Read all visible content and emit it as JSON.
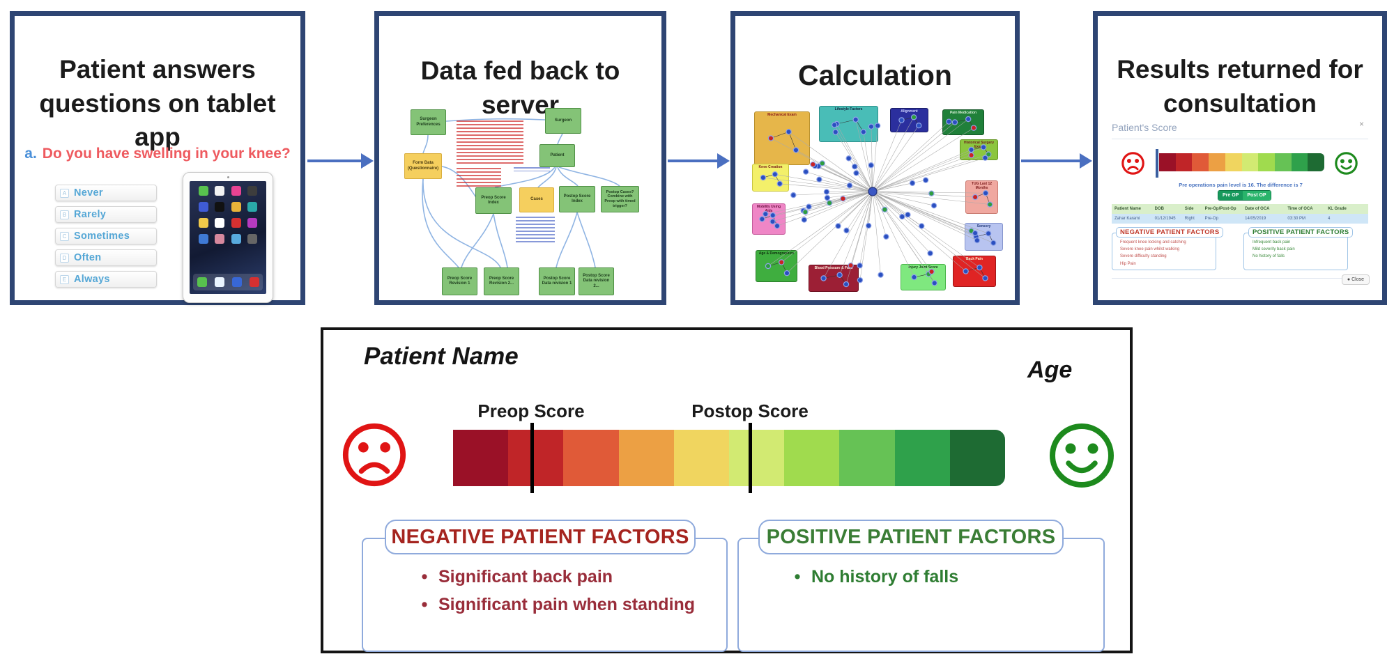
{
  "step1": {
    "title": "Patient answers questions on tablet app",
    "question_prefix": "a.",
    "question": "Do you have swelling in your knee?",
    "answers": [
      {
        "key": "A",
        "label": "Never"
      },
      {
        "key": "B",
        "label": "Rarely"
      },
      {
        "key": "C",
        "label": "Sometimes"
      },
      {
        "key": "D",
        "label": "Often"
      },
      {
        "key": "E",
        "label": "Always"
      }
    ]
  },
  "step2": {
    "title": "Data fed back to server",
    "boxes": {
      "surgeon_preferences": "Surgeon Preferences",
      "surgeon": "Surgeon",
      "patient": "Patient",
      "form_data": "Form Data (Questionnaire)",
      "preop_index": "Preop Score Index",
      "cases": "Cases",
      "postop_index": "Postop Score Index",
      "postop_cases": "Postop Cases? Combine with Preop with timed trigger?",
      "preop_rev1": "Preop Score Revision 1",
      "preop_rev2": "Preop Score Revision 2...",
      "postop_rev1": "Postop Score Data revision 1",
      "postop_rev2": "Postop Score Data revision 2..."
    }
  },
  "step3": {
    "title": "Calculation",
    "groups": [
      "Mechanical Exam",
      "Lifestyle Factors",
      "Alignment",
      "Pain Medication",
      "Historical Surgery Exam",
      "Knee Creation",
      "Mobility Using Aids",
      "Age & Demographics",
      "Blood Pressure & Falls",
      "Injury Joint Score",
      "Back Pain",
      "TUG Last 12 Months",
      "Sensory"
    ]
  },
  "step4": {
    "title": "Results returned for consultation",
    "report_header": "Patient's Score",
    "caption": "Pre operations pain level is 16. The difference is 7",
    "buttons": [
      "Pre OP",
      "Post OP"
    ],
    "table_headers": [
      "Patient Name",
      "DOB",
      "Side",
      "Pre-Op/Post-Op",
      "Date of OCA",
      "Time of OCA",
      "KL Grade"
    ],
    "table_row": [
      "Zahar Karami",
      "01/12/1945",
      "Right",
      "Pre-Op",
      "14/05/2019",
      "03:30 PM",
      "4"
    ],
    "negative_title": "NEGATIVE PATIENT FACTORS",
    "negative_items": [
      "Frequent knee locking and catching",
      "Severe knee pain whilst walking",
      "Severe difficulty standing",
      "Hip Pain"
    ],
    "positive_title": "POSITIVE PATIENT FACTORS",
    "positive_items": [
      "Infrequent back pain",
      "Mild severity back pain",
      "No history of falls"
    ],
    "close_label": "Close"
  },
  "detail": {
    "patient_name_label": "Patient Name",
    "age_label": "Age",
    "preop_label": "Preop Score",
    "postop_label": "Postop Score",
    "preop_marker_pct": 14,
    "postop_marker_pct": 53.5,
    "scale_colors": [
      "#9A1127",
      "#C02528",
      "#E05A38",
      "#ECA044",
      "#F0D55F",
      "#D2EA72",
      "#A0DB4E",
      "#66C255",
      "#2FA14B",
      "#1E6B33"
    ],
    "negative_title": "NEGATIVE PATIENT FACTORS",
    "negative_items": [
      "Significant back pain",
      "Significant pain when standing"
    ],
    "positive_title": "POSITIVE PATIENT FACTORS",
    "positive_items": [
      "No history of falls"
    ]
  },
  "colors": {
    "panel_border": "#2e4573",
    "arrow": "#4a6fc0",
    "negative_text": "#992d3a",
    "positive_text": "#2e7d32",
    "factor_box_border": "#8faadc",
    "sad_face": "#e01414",
    "happy_face": "#1d8a1d"
  }
}
